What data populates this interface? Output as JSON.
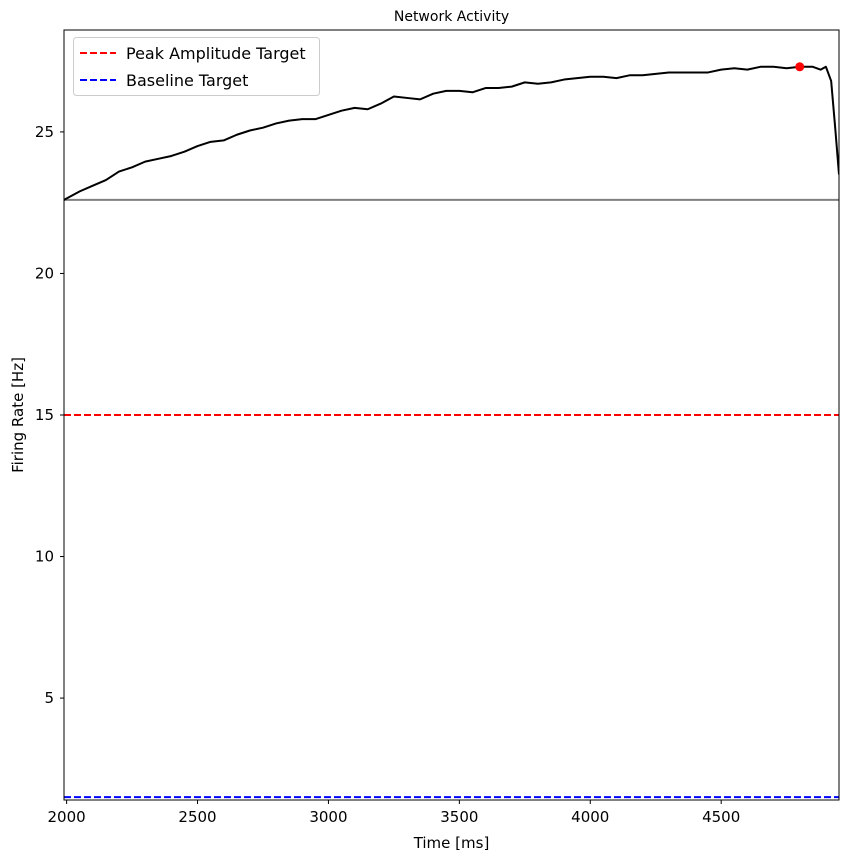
{
  "chart_data": {
    "type": "line",
    "title": "Network Activity",
    "xlabel": "Time [ms]",
    "ylabel": "Firing Rate [Hz]",
    "xlim": [
      1990,
      4950
    ],
    "ylim": [
      1.4,
      28.6
    ],
    "xticks": [
      2000,
      2500,
      3000,
      3500,
      4000,
      4500
    ],
    "xtick_labels": [
      "2000",
      "2500",
      "3000",
      "3500",
      "4000",
      "4500"
    ],
    "yticks": [
      5,
      10,
      15,
      20,
      25
    ],
    "ytick_labels": [
      "5",
      "10",
      "15",
      "20",
      "25"
    ],
    "grid": false,
    "legend_position": "top-left",
    "series": [
      {
        "style": "solid",
        "color": "#000000",
        "x": [
          1990,
          2050,
          2100,
          2150,
          2200,
          2250,
          2300,
          2350,
          2400,
          2450,
          2500,
          2550,
          2600,
          2650,
          2700,
          2750,
          2800,
          2850,
          2900,
          2950,
          3000,
          3050,
          3100,
          3150,
          3200,
          3250,
          3300,
          3350,
          3400,
          3450,
          3500,
          3550,
          3600,
          3650,
          3700,
          3750,
          3800,
          3850,
          3900,
          3950,
          4000,
          4050,
          4100,
          4150,
          4200,
          4250,
          4300,
          4350,
          4400,
          4450,
          4500,
          4550,
          4600,
          4650,
          4700,
          4750,
          4800,
          4850,
          4880,
          4900,
          4920,
          4935,
          4950
        ],
        "y": [
          22.6,
          22.9,
          23.1,
          23.3,
          23.6,
          23.75,
          23.95,
          24.05,
          24.15,
          24.3,
          24.5,
          24.65,
          24.7,
          24.9,
          25.05,
          25.15,
          25.3,
          25.4,
          25.45,
          25.45,
          25.6,
          25.75,
          25.85,
          25.8,
          26.0,
          26.25,
          26.2,
          26.15,
          26.35,
          26.45,
          26.45,
          26.4,
          26.55,
          26.55,
          26.6,
          26.75,
          26.7,
          26.75,
          26.85,
          26.9,
          26.95,
          26.95,
          26.9,
          27.0,
          27.0,
          27.05,
          27.1,
          27.1,
          27.1,
          27.1,
          27.2,
          27.25,
          27.2,
          27.3,
          27.3,
          27.25,
          27.3,
          27.3,
          27.2,
          27.3,
          26.8,
          25.2,
          23.5
        ]
      },
      {
        "name": "Peak Amplitude Target",
        "style": "dashed",
        "color": "#ff0000",
        "x": [
          1990,
          4950
        ],
        "y": [
          15,
          15
        ]
      },
      {
        "name": "Baseline Target",
        "style": "dashed",
        "color": "#0000ff",
        "x": [
          1990,
          4950
        ],
        "y": [
          1.5,
          1.5
        ]
      },
      {
        "style": "solid",
        "color": "#808080",
        "x": [
          1990,
          4950
        ],
        "y": [
          22.6,
          22.6
        ]
      }
    ],
    "marker": {
      "x": 4800,
      "y": 27.3,
      "color": "#ff0000"
    }
  }
}
